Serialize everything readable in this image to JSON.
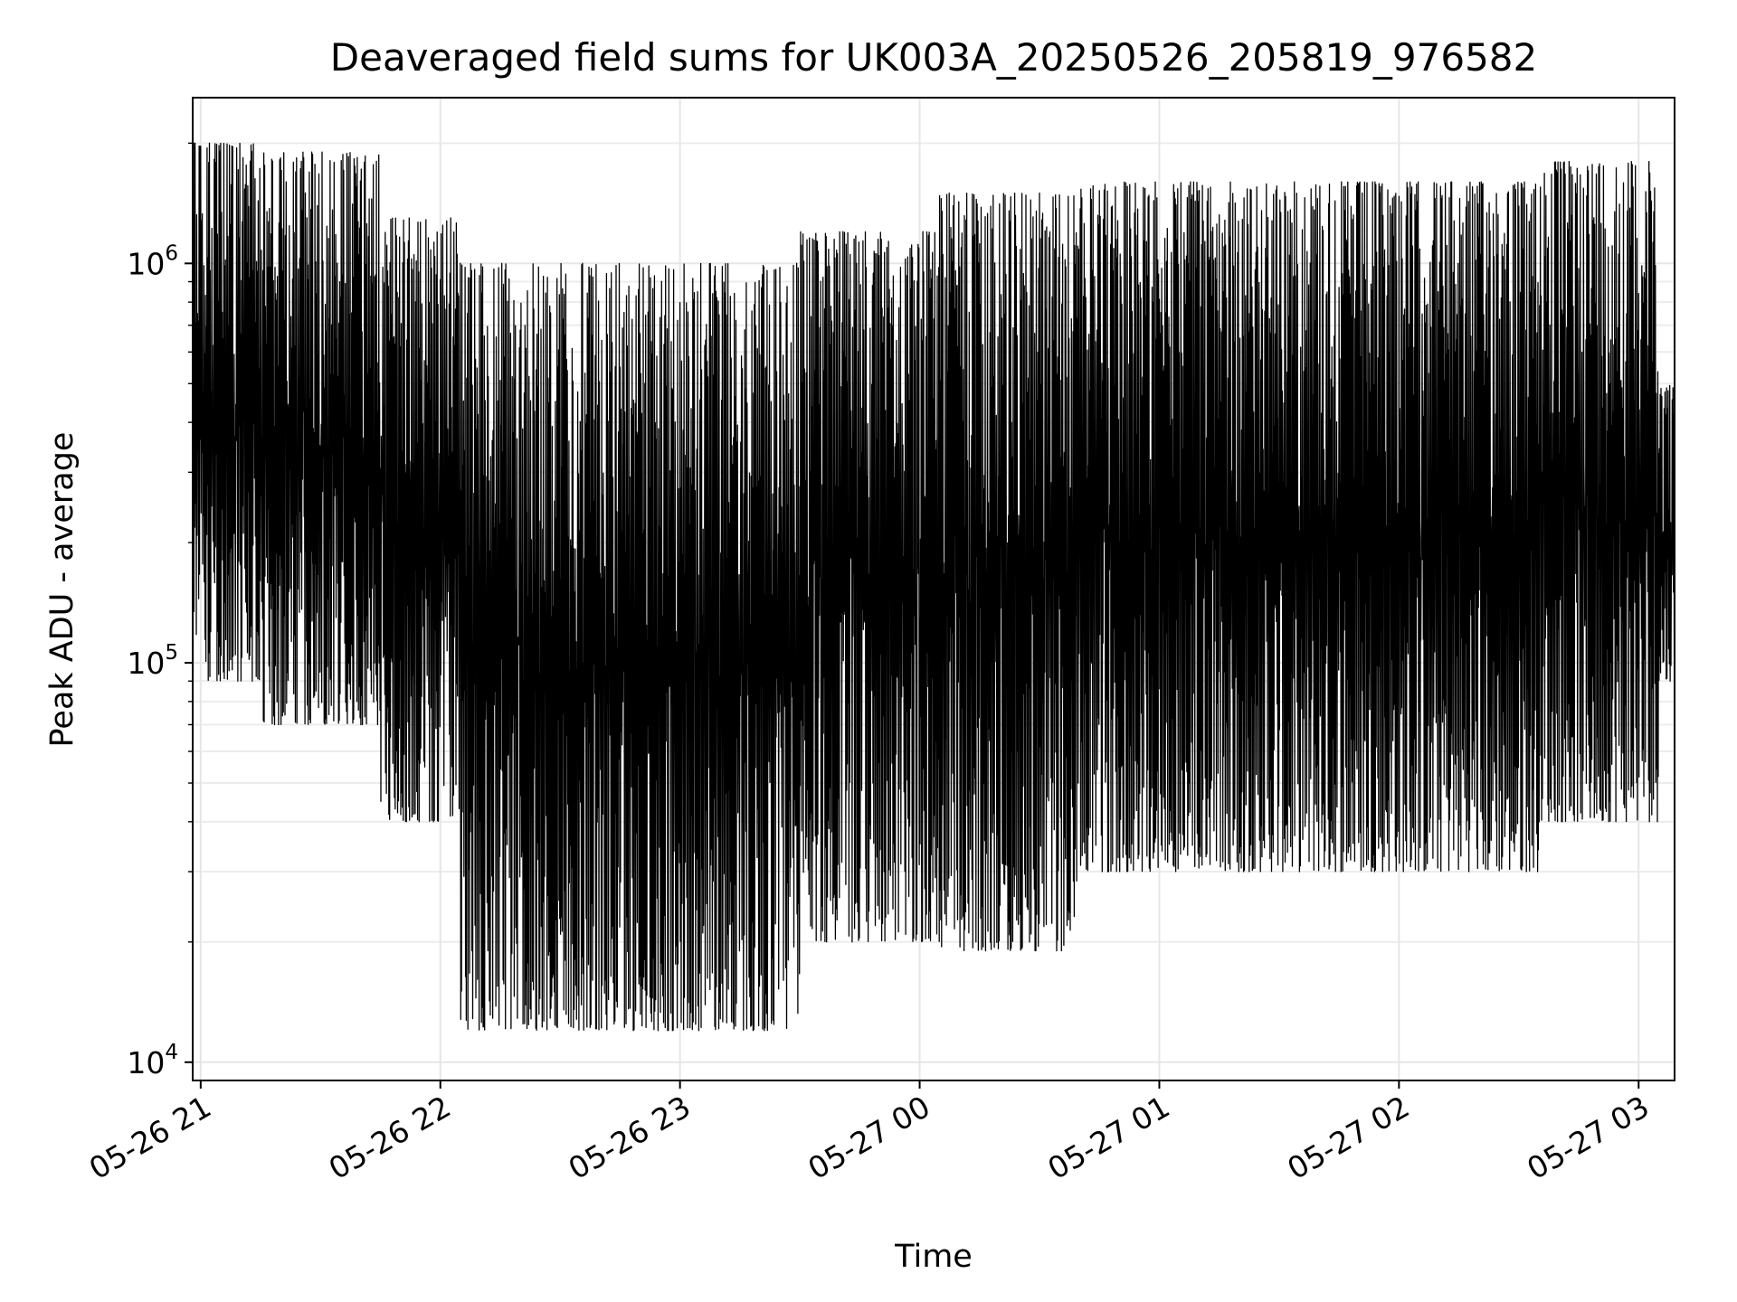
{
  "chart_data": {
    "type": "line",
    "title": "Deaveraged field sums for UK003A_20250526_205819_976582",
    "xlabel": "Time",
    "ylabel": "Peak ADU - average",
    "yscale": "log",
    "grid": true,
    "xlim": [
      "2025-05-26T20:58:00",
      "2025-05-27T03:09:00"
    ],
    "ylim": [
      9000,
      2600000
    ],
    "x_ticks": [
      "05-26 21",
      "05-26 22",
      "05-26 23",
      "05-27 00",
      "05-27 01",
      "05-27 02",
      "05-27 03"
    ],
    "x_tick_times": [
      "2025-05-26T21:00:00",
      "2025-05-26T22:00:00",
      "2025-05-26T23:00:00",
      "2025-05-27T00:00:00",
      "2025-05-27T01:00:00",
      "2025-05-27T02:00:00",
      "2025-05-27T03:00:00"
    ],
    "y_ticks": [
      {
        "value": 10000,
        "base": "10",
        "exp": "4"
      },
      {
        "value": 100000,
        "base": "10",
        "exp": "5"
      },
      {
        "value": 1000000,
        "base": "10",
        "exp": "6"
      }
    ],
    "series": [
      {
        "color": "#000000",
        "segments": [
          {
            "start": "2025-05-26T20:58:00",
            "end": "2025-05-26T21:15:00",
            "y_min": 90000,
            "y_max": 2000000
          },
          {
            "start": "2025-05-26T21:15:00",
            "end": "2025-05-26T21:45:00",
            "y_min": 70000,
            "y_max": 1900000
          },
          {
            "start": "2025-05-26T21:45:00",
            "end": "2025-05-26T22:05:00",
            "y_min": 40000,
            "y_max": 1300000
          },
          {
            "start": "2025-05-26T22:05:00",
            "end": "2025-05-26T23:30:00",
            "y_min": 12000,
            "y_max": 1000000
          },
          {
            "start": "2025-05-26T23:30:00",
            "end": "2025-05-27T00:05:00",
            "y_min": 20000,
            "y_max": 1200000
          },
          {
            "start": "2025-05-27T00:05:00",
            "end": "2025-05-27T00:40:00",
            "y_min": 19000,
            "y_max": 1500000
          },
          {
            "start": "2025-05-27T00:40:00",
            "end": "2025-05-27T02:35:00",
            "y_min": 30000,
            "y_max": 1600000
          },
          {
            "start": "2025-05-27T02:35:00",
            "end": "2025-05-27T03:05:00",
            "y_min": 40000,
            "y_max": 1800000
          },
          {
            "start": "2025-05-27T03:05:00",
            "end": "2025-05-27T03:09:00",
            "y_min": 90000,
            "y_max": 500000
          }
        ]
      }
    ]
  }
}
